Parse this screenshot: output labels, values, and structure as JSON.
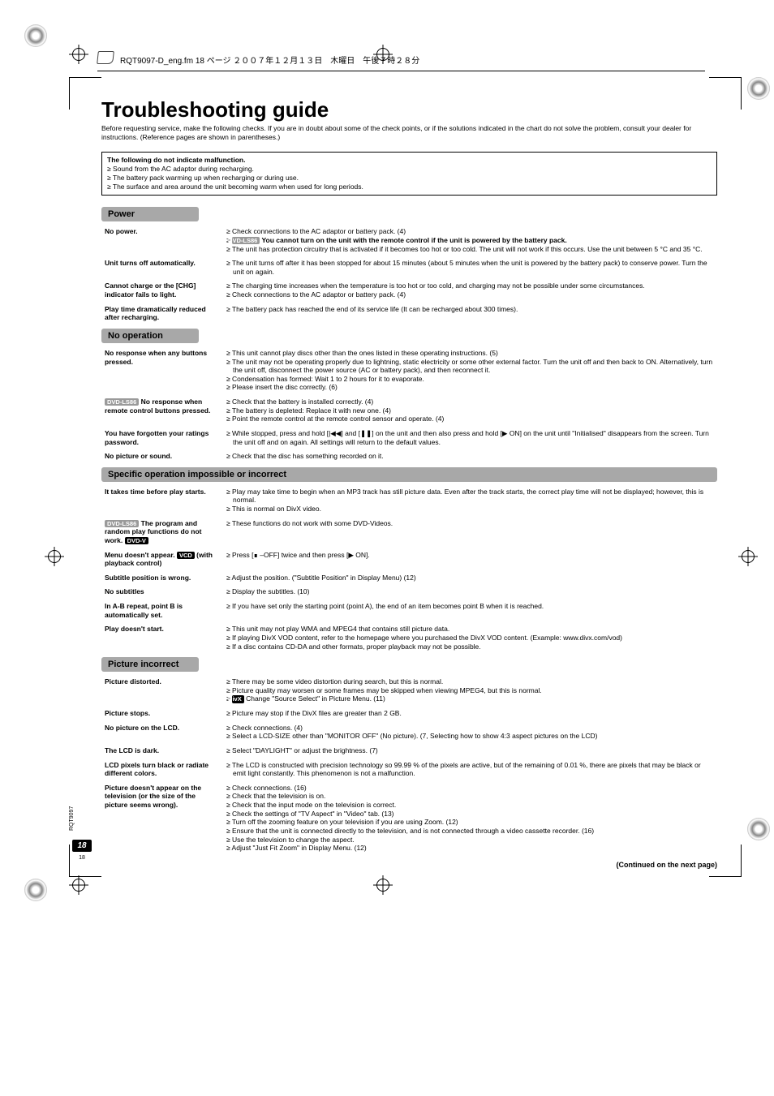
{
  "header_text": "RQT9097-D_eng.fm  18 ページ  ２００７年１２月１３日　木曜日　午後７時２８分",
  "title": "Troubleshooting guide",
  "intro": "Before requesting service, make the following checks. If you are in doubt about some of the check points, or if the solutions indicated in the chart do not solve the problem, consult your dealer for instructions. (Reference pages are shown in parentheses.)",
  "malfunction": {
    "title": "The following do not indicate malfunction.",
    "items": [
      "≥ Sound from the AC adaptor during recharging.",
      "≥ The battery pack warming up when recharging or during use.",
      "≥ The surface and area around the unit becoming warm when used for long periods."
    ]
  },
  "sections": [
    {
      "header": "Power",
      "rows": [
        {
          "symptom_parts": [
            {
              "t": "No power."
            }
          ],
          "remedy": [
            "≥ Check connections to the AC adaptor or battery pack. (4)",
            {
              "badge": "DVD-LS86",
              "bold": " You cannot turn on the unit with the remote control if the unit is powered by the battery pack."
            },
            "≥ The unit has protection circuitry that is activated if it becomes too hot or too cold. The unit will not work if this occurs. Use the unit between 5 °C and 35 °C."
          ]
        },
        {
          "symptom_parts": [
            {
              "t": "Unit turns off automatically."
            }
          ],
          "remedy": [
            "≥ The unit turns off after it has been stopped for about 15 minutes (about 5 minutes when the unit is powered by the battery pack) to conserve power. Turn the unit on again."
          ]
        },
        {
          "symptom_parts": [
            {
              "t": "Cannot charge or the [CHG] indicator fails to light."
            }
          ],
          "remedy": [
            "≥ The charging time increases when the temperature is too hot or too cold, and charging may not be possible under some circumstances.",
            "≥ Check connections to the AC adaptor or battery pack. (4)"
          ]
        },
        {
          "symptom_parts": [
            {
              "t": "Play time dramatically reduced after recharging."
            }
          ],
          "remedy": [
            "≥ The battery pack has reached the end of its service life (It can be recharged about 300 times)."
          ]
        }
      ]
    },
    {
      "header": "No operation",
      "rows": [
        {
          "symptom_parts": [
            {
              "t": "No response when any buttons pressed."
            }
          ],
          "remedy": [
            "≥ This unit cannot play discs other than the ones listed in these operating instructions. (5)",
            "≥ The unit may not be operating properly due to lightning, static electricity or some other external factor. Turn the unit off and then back to ON. Alternatively, turn the unit off, disconnect the power source (AC or battery pack), and then reconnect it.",
            "≥ Condensation has formed: Wait 1 to 2 hours for it to evaporate.",
            "≥ Please insert the disc correctly. (6)"
          ]
        },
        {
          "symptom_parts": [
            {
              "badge": "DVD-LS86"
            },
            {
              "t": " No response when remote control buttons pressed."
            }
          ],
          "remedy": [
            "≥ Check that the battery is installed correctly. (4)",
            "≥ The battery is depleted: Replace it with new one. (4)",
            "≥ Point the remote control at the remote control sensor and operate. (4)"
          ]
        },
        {
          "symptom_parts": [
            {
              "t": "You have forgotten your ratings password."
            }
          ],
          "remedy": [
            "≥ While stopped, press and hold [|◀◀] and [❚❚] on the unit and then also press and hold [▶ ON] on the unit until \"Initialised\" disappears from the screen. Turn the unit off and on again. All settings will return to the default values."
          ]
        },
        {
          "symptom_parts": [
            {
              "t": "No picture or sound."
            }
          ],
          "remedy": [
            "≥ Check that the disc has something recorded on it."
          ]
        }
      ]
    },
    {
      "header": "Specific operation impossible or incorrect",
      "wide": true,
      "rows": [
        {
          "symptom_parts": [
            {
              "t": "It takes time before play starts."
            }
          ],
          "remedy": [
            "≥ Play may take time to begin when an MP3 track has still picture data. Even after the track starts, the correct play time will not be displayed; however, this is normal.",
            "≥ This is normal on DivX video."
          ]
        },
        {
          "symptom_parts": [
            {
              "badge": "DVD-LS86"
            },
            {
              "t": " The program and random play functions do not work. "
            },
            {
              "badge_dark": "DVD-V"
            }
          ],
          "remedy": [
            "≥ These functions do not work with some DVD-Videos."
          ]
        },
        {
          "symptom_parts": [
            {
              "t": "Menu doesn't appear. "
            },
            {
              "badge_dark": "VCD"
            },
            {
              "t": " (with playback control)"
            }
          ],
          "remedy": [
            "≥ Press [∎ –OFF] twice and then press [▶ ON]."
          ]
        },
        {
          "symptom_parts": [
            {
              "t": "Subtitle position is wrong."
            }
          ],
          "remedy": [
            "≥ Adjust the position. (\"Subtitle Position\" in Display Menu) (12)"
          ]
        },
        {
          "symptom_parts": [
            {
              "t": "No subtitles"
            }
          ],
          "remedy": [
            "≥ Display the subtitles. (10)"
          ]
        },
        {
          "symptom_parts": [
            {
              "t": "In A-B repeat, point B is automatically set."
            }
          ],
          "remedy": [
            "≥ If you have set only the starting point (point A), the end of an item becomes point B when it is reached."
          ]
        },
        {
          "symptom_parts": [
            {
              "t": "Play doesn't start."
            }
          ],
          "remedy": [
            "≥ This unit may not play WMA and MPEG4 that contains still picture data.",
            "≥ If playing DivX VOD content, refer to the homepage where you purchased the DivX VOD content. (Example: www.divx.com/vod)",
            "≥ If a disc contains CD-DA and other formats, proper playback may not be possible."
          ]
        }
      ]
    },
    {
      "header": "Picture incorrect",
      "rows": [
        {
          "symptom_parts": [
            {
              "t": "Picture distorted."
            }
          ],
          "remedy": [
            "≥ There may be some video distortion during search, but this is normal.",
            "≥  Picture quality may worsen or some frames may be skipped when viewing MPEG4, but this is normal.",
            {
              "badge_dark": "DivX",
              "after": " Change \"Source Select\" in Picture Menu. (11)"
            }
          ]
        },
        {
          "symptom_parts": [
            {
              "t": "Picture stops."
            }
          ],
          "remedy": [
            "≥ Picture may stop if the DivX files are greater than 2 GB."
          ]
        },
        {
          "symptom_parts": [
            {
              "t": "No picture on the LCD."
            }
          ],
          "remedy": [
            "≥ Check connections. (4)",
            "≥ Select a LCD-SIZE other than \"MONITOR OFF\" (No picture). (7, Selecting how to show 4:3 aspect pictures on the LCD)"
          ]
        },
        {
          "symptom_parts": [
            {
              "t": "The LCD is dark."
            }
          ],
          "remedy": [
            "≥ Select \"DAYLIGHT\" or adjust the brightness. (7)"
          ]
        },
        {
          "symptom_parts": [
            {
              "t": "LCD pixels turn black or radiate different colors."
            }
          ],
          "remedy": [
            "≥ The LCD is constructed with precision technology so 99.99 % of the pixels are active, but of the remaining of 0.01 %, there are pixels that may be black or emit light constantly. This phenomenon is not a malfunction."
          ]
        },
        {
          "symptom_parts": [
            {
              "t": "Picture doesn't appear on the television (or the size of the picture seems wrong)."
            }
          ],
          "remedy": [
            "≥ Check connections. (16)",
            "≥ Check that the television is on.",
            "≥ Check that the input mode on the television is correct.",
            "≥ Check the settings of \"TV Aspect\" in \"Video\" tab. (13)",
            "≥ Turn off the zooming feature on your television if you are using Zoom. (12)",
            "≥ Ensure that the unit is connected directly to the television, and is not connected through a video cassette recorder. (16)",
            "≥ Use the television to change the aspect.",
            "≥ Adjust \"Just Fit Zoom\" in Display Menu. (12)"
          ]
        }
      ]
    }
  ],
  "continued": "(Continued on the next page)",
  "side_label": "RQT9097",
  "page_num_big": "18",
  "page_num_small": "18"
}
